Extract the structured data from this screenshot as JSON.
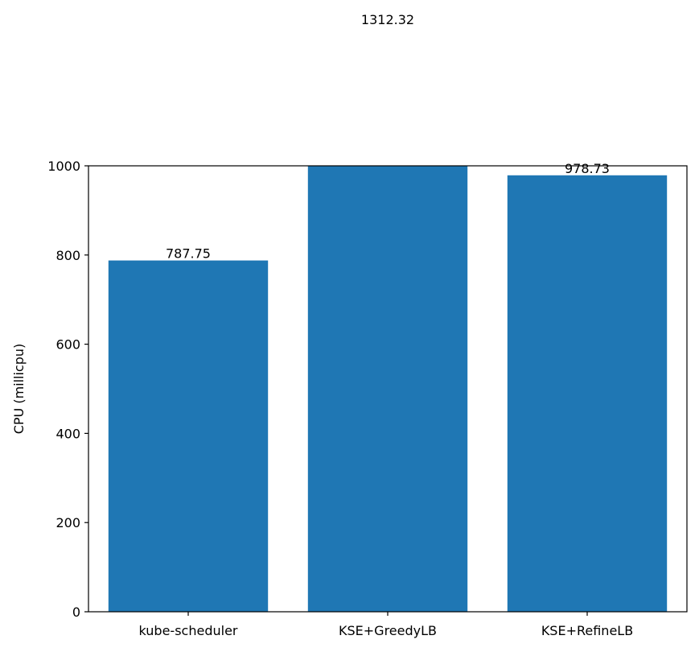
{
  "chart_data": {
    "type": "bar",
    "categories": [
      "kube-scheduler",
      "KSE+GreedyLB",
      "KSE+RefineLB"
    ],
    "values": [
      787.75,
      1312.32,
      978.73
    ],
    "value_labels": [
      "787.75",
      "1312.32",
      "978.73"
    ],
    "title": "",
    "xlabel": "",
    "ylabel": "CPU (millicpu)",
    "ylim": [
      0,
      1000
    ],
    "yticks": [
      0,
      200,
      400,
      600,
      800,
      1000
    ],
    "bar_color": "#1f77b4",
    "grid": false,
    "legend": "none"
  }
}
